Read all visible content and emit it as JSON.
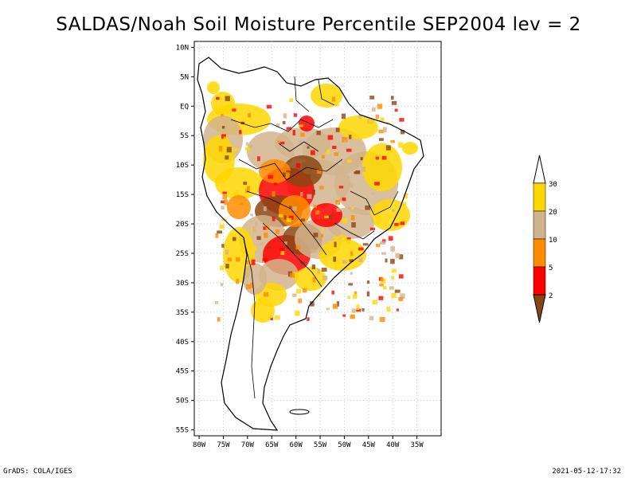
{
  "title": "SALDAS/Noah Soil Moisture Percentile SEP2004 lev = 2",
  "map": {
    "region": "South America",
    "lon_range": [
      -81,
      -30
    ],
    "lat_range": [
      -56,
      11
    ],
    "lon_ticks": [
      "80W",
      "75W",
      "70W",
      "65W",
      "60W",
      "55W",
      "50W",
      "45W",
      "40W",
      "35W"
    ],
    "lat_ticks": [
      "10N",
      "5N",
      "EQ",
      "5S",
      "10S",
      "15S",
      "20S",
      "25S",
      "30S",
      "35S",
      "40S",
      "45S",
      "50S",
      "55S"
    ]
  },
  "colorbar": {
    "labels": [
      "2",
      "5",
      "10",
      "20",
      "30"
    ],
    "colors": [
      "#8b4513",
      "#ff0000",
      "#ff8c00",
      "#d2b48c",
      "#ffd700",
      "#ffffff"
    ]
  },
  "footer": {
    "left": "GrADS: COLA/IGES",
    "right": "2021-05-12-17:32"
  }
}
